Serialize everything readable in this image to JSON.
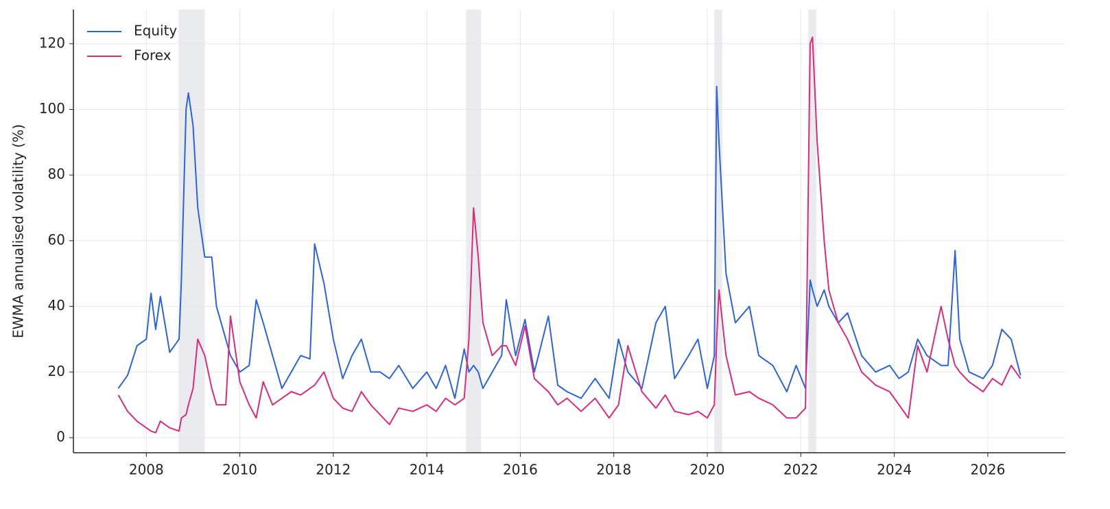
{
  "chart_data": {
    "type": "line",
    "y_label": "EWMA annualised volatility (%)",
    "x": [
      2007.4,
      2007.6,
      2007.8,
      2008.0,
      2008.1,
      2008.2,
      2008.3,
      2008.5,
      2008.7,
      2008.75,
      2008.85,
      2008.9,
      2009.0,
      2009.1,
      2009.25,
      2009.4,
      2009.5,
      2009.7,
      2009.8,
      2010.0,
      2010.2,
      2010.35,
      2010.5,
      2010.7,
      2010.9,
      2011.1,
      2011.3,
      2011.5,
      2011.6,
      2011.8,
      2012.0,
      2012.2,
      2012.4,
      2012.6,
      2012.8,
      2013.0,
      2013.2,
      2013.4,
      2013.7,
      2014.0,
      2014.2,
      2014.4,
      2014.6,
      2014.8,
      2014.9,
      2015.0,
      2015.1,
      2015.2,
      2015.4,
      2015.6,
      2015.7,
      2015.9,
      2016.1,
      2016.3,
      2016.6,
      2016.8,
      2017.0,
      2017.3,
      2017.6,
      2017.9,
      2018.1,
      2018.3,
      2018.6,
      2018.9,
      2019.1,
      2019.3,
      2019.6,
      2019.8,
      2020.0,
      2020.15,
      2020.2,
      2020.25,
      2020.4,
      2020.6,
      2020.9,
      2021.1,
      2021.4,
      2021.7,
      2021.9,
      2022.1,
      2022.2,
      2022.25,
      2022.35,
      2022.5,
      2022.6,
      2022.8,
      2023.0,
      2023.3,
      2023.6,
      2023.9,
      2024.1,
      2024.3,
      2024.5,
      2024.7,
      2025.0,
      2025.15,
      2025.3,
      2025.4,
      2025.6,
      2025.9,
      2026.1,
      2026.3,
      2026.5,
      2026.7
    ],
    "series": [
      {
        "name": "Equity",
        "color": "#2a62e0",
        "values": [
          15,
          19,
          28,
          30,
          44,
          33,
          43,
          26,
          30,
          48,
          100,
          105,
          95,
          70,
          55,
          55,
          40,
          30,
          25,
          20,
          22,
          42,
          35,
          25,
          15,
          20,
          25,
          24,
          59,
          47,
          30,
          18,
          25,
          30,
          20,
          20,
          18,
          22,
          15,
          20,
          15,
          22,
          12,
          27,
          20,
          22,
          20,
          15,
          20,
          25,
          42,
          25,
          36,
          20,
          37,
          16,
          14,
          12,
          18,
          12,
          30,
          20,
          15,
          35,
          40,
          18,
          25,
          30,
          15,
          25,
          107,
          90,
          50,
          35,
          40,
          25,
          22,
          14,
          22,
          15,
          48,
          45,
          40,
          45,
          40,
          35,
          38,
          25,
          20,
          22,
          18,
          20,
          30,
          25,
          22,
          22,
          57,
          30,
          20,
          18,
          22,
          33,
          30,
          19
        ]
      },
      {
        "name": "Forex",
        "color": "#db2a7a",
        "values": [
          13,
          8,
          5,
          3,
          2,
          1.5,
          5,
          3,
          2,
          6,
          7,
          10,
          15,
          30,
          25,
          15,
          10,
          10,
          37,
          17,
          10,
          6,
          17,
          10,
          12,
          14,
          13,
          15,
          16,
          20,
          12,
          9,
          8,
          14,
          10,
          7,
          4,
          9,
          8,
          10,
          8,
          12,
          10,
          12,
          30,
          70,
          55,
          35,
          25,
          28,
          28,
          22,
          34,
          18,
          14,
          10,
          12,
          8,
          12,
          6,
          10,
          28,
          14,
          9,
          13,
          8,
          7,
          8,
          6,
          10,
          30,
          45,
          25,
          13,
          14,
          12,
          10,
          6,
          6,
          9,
          120,
          122,
          90,
          60,
          45,
          35,
          30,
          20,
          16,
          14,
          10,
          6,
          28,
          20,
          40,
          30,
          22,
          20,
          17,
          14,
          18,
          16,
          22,
          18
        ]
      }
    ],
    "shaded_spans": [
      [
        2008.69,
        2009.25
      ],
      [
        2014.84,
        2015.16
      ],
      [
        2020.15,
        2020.32
      ],
      [
        2022.16,
        2022.33
      ]
    ],
    "xlim": [
      2006.44,
      2027.66
    ],
    "xticks": [
      2008,
      2010,
      2012,
      2014,
      2016,
      2018,
      2020,
      2022,
      2024,
      2026
    ],
    "ylim": [
      -4.6,
      130.4
    ],
    "yticks": [
      0,
      20,
      40,
      60,
      80,
      100,
      120
    ],
    "grid": true,
    "legend": "upper-left"
  }
}
